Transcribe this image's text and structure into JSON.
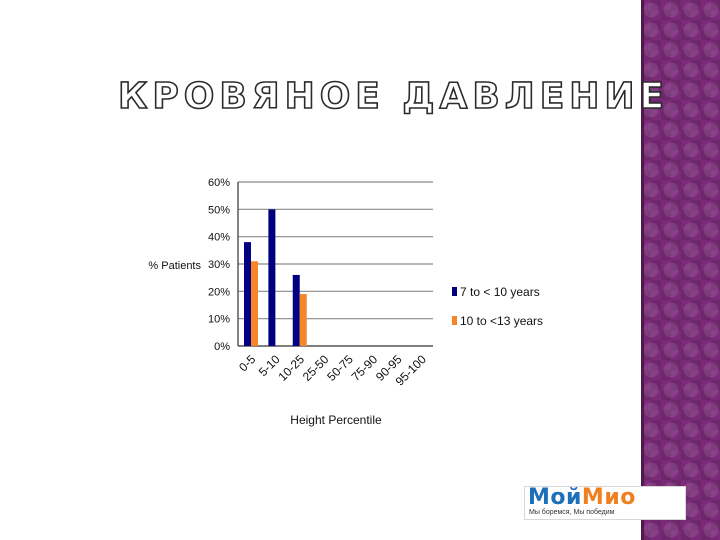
{
  "slide": {
    "title": "КРОВЯНОЕ ДАВЛЕНИЕ",
    "accent_band_color": "#7a2a78"
  },
  "logo": {
    "part1": "Мой",
    "part2": "Мио",
    "tagline": "Мы боремся, Мы победим",
    "colors": {
      "part1": "#1c6fb8",
      "part2": "#f07f1f"
    }
  },
  "chart_data": {
    "type": "bar",
    "xlabel": "Height Percentile",
    "ylabel": "% Patients",
    "ylim": [
      0,
      60
    ],
    "yticks": [
      0,
      10,
      20,
      30,
      40,
      50,
      60
    ],
    "ytick_format": "percent",
    "grid": true,
    "legend_position": "right",
    "categories": [
      "0-5",
      "5-10",
      "10-25",
      "25-50",
      "50-75",
      "75-90",
      "90-95",
      "95-100"
    ],
    "series": [
      {
        "name": "7 to < 10 years",
        "color": "#000080",
        "values": [
          38,
          50,
          26,
          0,
          0,
          0,
          0,
          0
        ]
      },
      {
        "name": "10 to <13 years",
        "color": "#f7862a",
        "values": [
          31,
          0,
          19,
          0,
          0,
          0,
          0,
          0
        ]
      }
    ]
  }
}
